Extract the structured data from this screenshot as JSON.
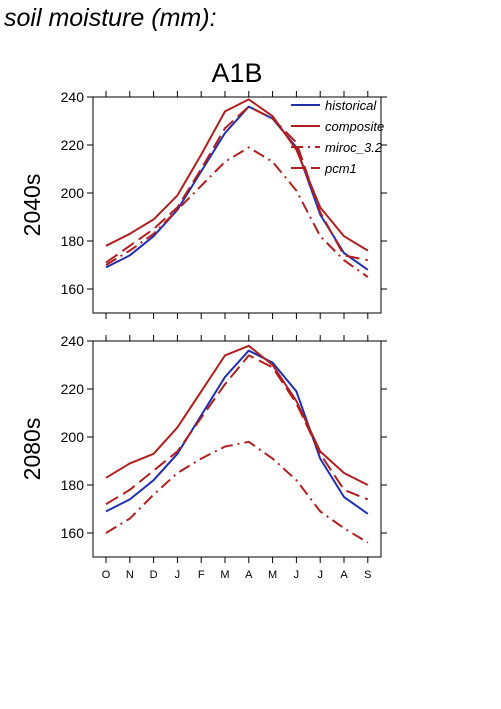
{
  "page_title": "soil moisture (mm):",
  "chart_data": {
    "type": "line",
    "title": "A1B",
    "categories": [
      "O",
      "N",
      "D",
      "J",
      "F",
      "M",
      "A",
      "M",
      "J",
      "J",
      "A",
      "S"
    ],
    "ylim": [
      150,
      240
    ],
    "yticks": [
      160,
      180,
      200,
      220,
      240
    ],
    "legend": {
      "placement": "top-right",
      "entries": [
        "historical",
        "composite",
        "miroc_3.2",
        "pcm1"
      ]
    },
    "colors": {
      "historical": "#1f2fb0",
      "composite": "#b01f1f",
      "miroc_3.2": "#b01f1f",
      "pcm1": "#b01f1f"
    },
    "panels": [
      {
        "ylabel": "2040s",
        "series": [
          {
            "name": "historical",
            "style": "solid",
            "color": "#1f2fb0",
            "values": [
              169,
              174,
              182,
              193,
              209,
              225,
              236,
              231,
              219,
              191,
              175,
              168
            ]
          },
          {
            "name": "composite",
            "style": "solid",
            "color": "#b01f1f",
            "values": [
              178,
              183,
              189,
              199,
              216,
              234,
              239,
              232,
              218,
              194,
              182,
              176
            ]
          },
          {
            "name": "miroc_3.2",
            "style": "dashdot",
            "color": "#b01f1f",
            "values": [
              170,
              176,
              183,
              193,
              203,
              213,
              219,
              213,
              201,
              182,
              172,
              165
            ]
          },
          {
            "name": "pcm1",
            "style": "dash",
            "color": "#b01f1f",
            "values": [
              171,
              178,
              185,
              194,
              210,
              227,
              236,
              231,
              221,
              192,
              174,
              172
            ]
          }
        ]
      },
      {
        "ylabel": "2080s",
        "series": [
          {
            "name": "historical",
            "style": "solid",
            "color": "#1f2fb0",
            "values": [
              169,
              174,
              182,
              193,
              209,
              225,
              236,
              231,
              219,
              191,
              175,
              168
            ]
          },
          {
            "name": "composite",
            "style": "solid",
            "color": "#b01f1f",
            "values": [
              183,
              189,
              193,
              204,
              219,
              234,
              238,
              230,
              215,
              194,
              185,
              180
            ]
          },
          {
            "name": "miroc_3.2",
            "style": "dashdot",
            "color": "#b01f1f",
            "values": [
              160,
              166,
              176,
              185,
              191,
              196,
              198,
              191,
              182,
              169,
              162,
              156
            ]
          },
          {
            "name": "pcm1",
            "style": "dash",
            "color": "#b01f1f",
            "values": [
              172,
              178,
              186,
              194,
              208,
              222,
              234,
              229,
              214,
              193,
              178,
              174
            ]
          }
        ]
      }
    ]
  }
}
